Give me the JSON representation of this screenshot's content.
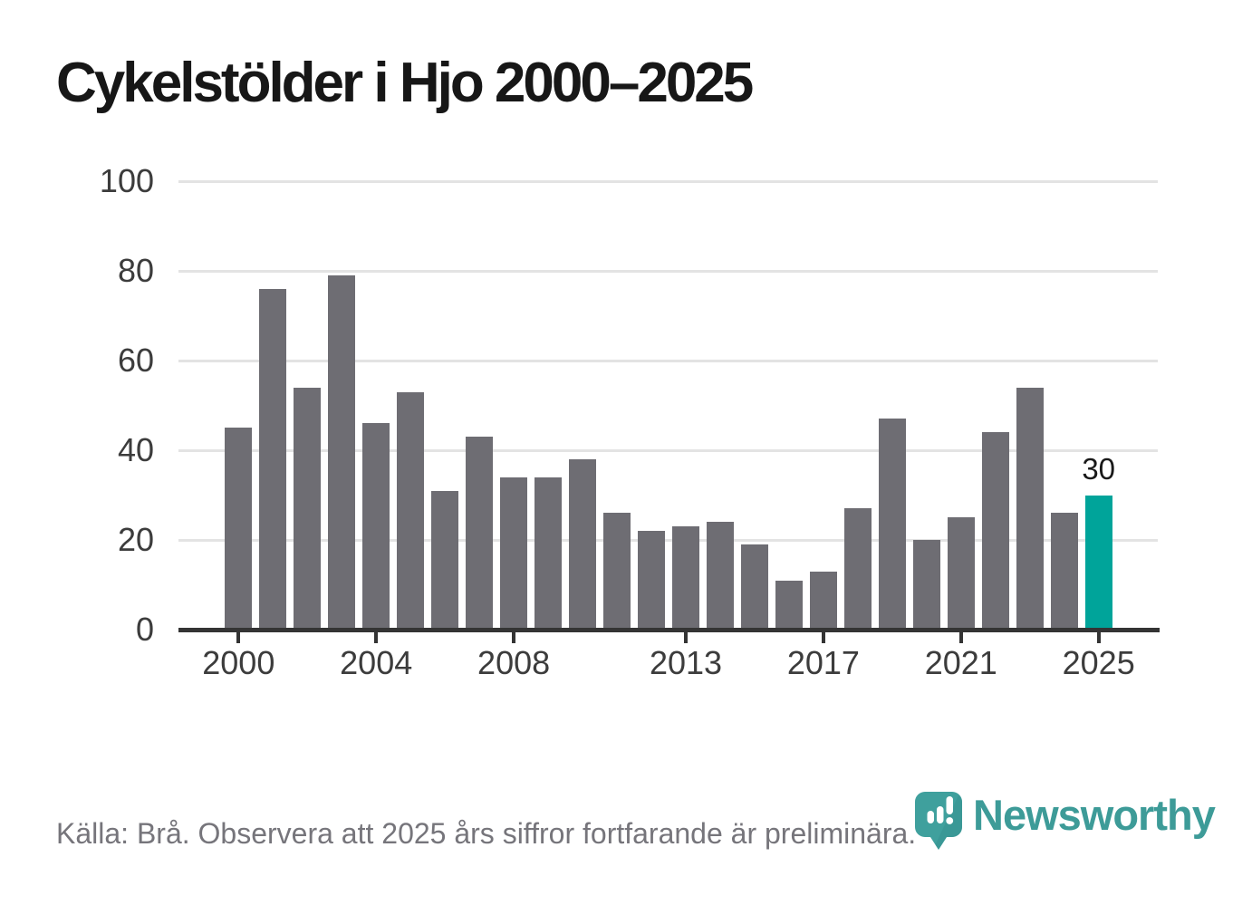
{
  "title": "Cykelstölder i Hjo 2000–2025",
  "footer": {
    "source_text": "Källa: Brå. Observera att 2025 års siffror fortfarande är preliminära."
  },
  "branding": {
    "logo_text": "Newsworthy",
    "logo_icon": "newsworthy-pin-icon",
    "logo_color": "#3d9b98",
    "pin_color": "#3fa09d"
  },
  "colors": {
    "bar_default": "#6e6d73",
    "bar_highlight": "#00a49a",
    "gridline": "#e3e3e3",
    "axis": "#343434",
    "axis_text": "#3c3c3c",
    "title_text": "#171717",
    "footer_text": "#76757b"
  },
  "chart_data": {
    "type": "bar",
    "title": "Cykelstölder i Hjo 2000–2025",
    "xlabel": "",
    "ylabel": "",
    "categories": [
      2000,
      2001,
      2002,
      2003,
      2004,
      2005,
      2006,
      2007,
      2008,
      2009,
      2010,
      2011,
      2012,
      2013,
      2014,
      2015,
      2016,
      2017,
      2018,
      2019,
      2020,
      2021,
      2022,
      2023,
      2024,
      2025
    ],
    "values": [
      45,
      76,
      54,
      79,
      46,
      53,
      31,
      43,
      34,
      34,
      38,
      26,
      22,
      23,
      24,
      19,
      11,
      13,
      27,
      47,
      20,
      25,
      44,
      54,
      26,
      30
    ],
    "ylim": [
      0,
      100
    ],
    "yticks": [
      0,
      20,
      40,
      60,
      80,
      100
    ],
    "xticks_shown": [
      2000,
      2004,
      2008,
      2013,
      2017,
      2021,
      2025
    ],
    "grid": true,
    "legend": "none",
    "highlight": {
      "category": 2025,
      "value": 30,
      "label": "30"
    }
  }
}
